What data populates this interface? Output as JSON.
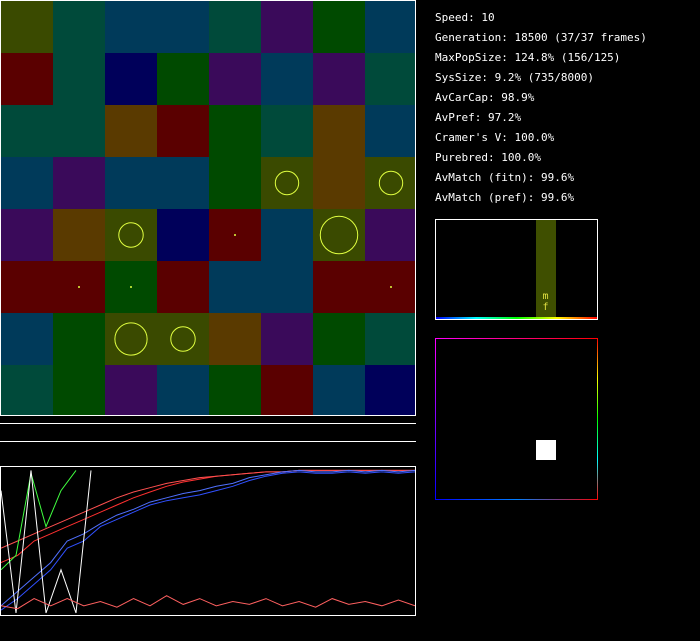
{
  "grid": {
    "rows": [
      [
        "#3a4a00",
        "#004a3a",
        "#003a5a",
        "#003a5a",
        "#004a3a",
        "#3a0a5a",
        "#004a00",
        "#003a5a"
      ],
      [
        "#5a0000",
        "#004a3a",
        "#00005a",
        "#004a00",
        "#3a0a5a",
        "#003a5a",
        "#3a0a5a",
        "#004a3a"
      ],
      [
        "#004a3a",
        "#004a3a",
        "#5a3a00",
        "#5a0000",
        "#004a00",
        "#004a3a",
        "#5a3a00",
        "#003a5a"
      ],
      [
        "#003a5a",
        "#3a0a5a",
        "#003a5a",
        "#003a5a",
        "#004a00",
        "#3a4a00",
        "#5a3a00",
        "#3a4a00"
      ],
      [
        "#3a0a5a",
        "#5a3a00",
        "#3a4a00",
        "#00005a",
        "#5a0000",
        "#003a5a",
        "#3a4a00",
        "#3a0a5a"
      ],
      [
        "#5a0000",
        "#5a0000",
        "#004a00",
        "#5a0000",
        "#003a5a",
        "#003a5a",
        "#5a0000",
        "#5a0000"
      ],
      [
        "#003a5a",
        "#004a00",
        "#3a4a00",
        "#3a4a00",
        "#5a3a00",
        "#3a0a5a",
        "#004a00",
        "#004a3a"
      ],
      [
        "#004a3a",
        "#004a00",
        "#3a0a5a",
        "#003a5a",
        "#004a00",
        "#5a0000",
        "#003a5a",
        "#00005a"
      ]
    ],
    "organisms": [
      {
        "row": 3,
        "col": 5,
        "size": 0.45
      },
      {
        "row": 3,
        "col": 7,
        "size": 0.45
      },
      {
        "row": 4,
        "col": 2,
        "size": 0.47
      },
      {
        "row": 4,
        "col": 4,
        "size": 0.03
      },
      {
        "row": 4,
        "col": 6,
        "size": 0.72
      },
      {
        "row": 5,
        "col": 1,
        "size": 0.03
      },
      {
        "row": 5,
        "col": 2,
        "size": 0.03
      },
      {
        "row": 5,
        "col": 7,
        "size": 0.03
      },
      {
        "row": 6,
        "col": 2,
        "size": 0.62
      },
      {
        "row": 6,
        "col": 3,
        "size": 0.47
      }
    ],
    "organism_color": "#e0ff40"
  },
  "stats": {
    "speed": "Speed: 10",
    "generation": "Generation: 18500 (37/37 frames)",
    "max_pop_size": "MaxPopSize: 124.8% (156/125)",
    "sys_size": "SysSize: 9.2% (735/8000)",
    "av_car_cap": "AvCarCap: 98.9%",
    "av_pref": "AvPref: 97.2%",
    "cramers_v": "Cramer's V: 100.0%",
    "purebred": "Purebred: 100.0%",
    "av_match_fitn": "AvMatch (fitn): 99.6%",
    "av_match_pref": "AvMatch (pref): 99.6%"
  },
  "histogram": {
    "labels": "m f",
    "bar_color": "#3f4f00"
  },
  "history": {
    "series": [
      {
        "color": "#ff3030",
        "values": [
          0.35,
          0.4,
          0.5,
          0.55,
          0.6,
          0.65,
          0.7,
          0.75,
          0.8,
          0.84,
          0.88,
          0.91,
          0.93,
          0.95,
          0.96,
          0.97,
          0.98,
          0.98,
          0.99,
          0.99,
          0.99,
          0.99,
          0.99,
          0.99,
          0.99,
          0.99
        ]
      },
      {
        "color": "#ff5050",
        "values": [
          0.45,
          0.5,
          0.55,
          0.6,
          0.65,
          0.7,
          0.75,
          0.8,
          0.84,
          0.87,
          0.9,
          0.92,
          0.94,
          0.95,
          0.96,
          0.97,
          0.98,
          0.98,
          0.99,
          0.99,
          0.99,
          0.99,
          0.99,
          0.99,
          0.99,
          0.99
        ]
      },
      {
        "color": "#3050ff",
        "values": [
          0.02,
          0.1,
          0.2,
          0.3,
          0.45,
          0.5,
          0.6,
          0.65,
          0.7,
          0.75,
          0.78,
          0.8,
          0.82,
          0.85,
          0.88,
          0.92,
          0.95,
          0.97,
          0.98,
          0.97,
          0.97,
          0.98,
          0.97,
          0.98,
          0.97,
          0.98
        ]
      },
      {
        "color": "#5070ff",
        "values": [
          0.05,
          0.15,
          0.25,
          0.35,
          0.5,
          0.55,
          0.62,
          0.68,
          0.72,
          0.77,
          0.8,
          0.83,
          0.85,
          0.88,
          0.9,
          0.94,
          0.96,
          0.98,
          0.99,
          0.98,
          0.98,
          0.99,
          0.98,
          0.99,
          0.98,
          0.99
        ]
      },
      {
        "color": "#40ff40",
        "values": [
          0.3,
          0.4,
          0.97,
          0.6,
          0.85,
          0.99
        ]
      },
      {
        "color": "#ffffff",
        "values": [
          0.85,
          0.0,
          0.99,
          0.0,
          0.3,
          0.0,
          0.99
        ]
      },
      {
        "color": "#ff6060",
        "values": [
          0.05,
          0.03,
          0.1,
          0.05,
          0.1,
          0.05,
          0.08,
          0.04,
          0.1,
          0.05,
          0.12,
          0.06,
          0.1,
          0.05,
          0.08,
          0.06,
          0.1,
          0.05,
          0.08,
          0.04,
          0.1,
          0.06,
          0.08,
          0.05,
          0.09,
          0.05
        ]
      }
    ]
  }
}
